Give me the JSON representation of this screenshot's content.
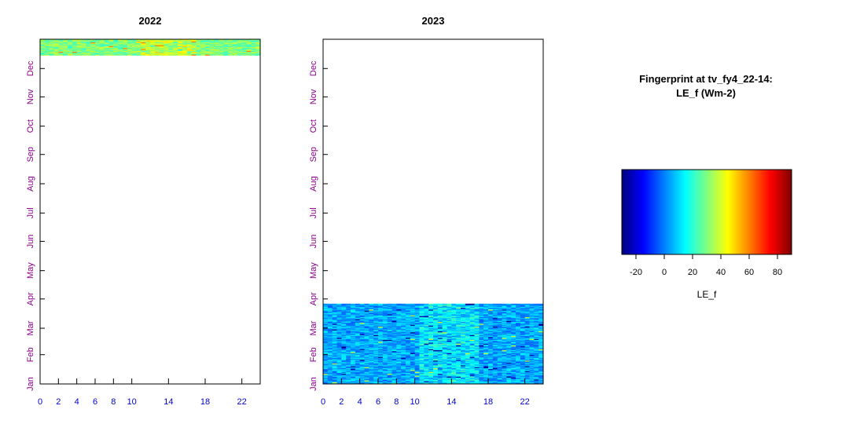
{
  "chart_data": [
    {
      "type": "heatmap",
      "title": "2022",
      "x_ticks": [
        0,
        2,
        4,
        6,
        8,
        10,
        14,
        18,
        22
      ],
      "x_range": [
        0,
        24
      ],
      "y_ticks": [
        "Jan",
        "Feb",
        "Mar",
        "Apr",
        "May",
        "Jun",
        "Jul",
        "Aug",
        "Sep",
        "Oct",
        "Nov",
        "Dec"
      ],
      "y_range_days": [
        1,
        366
      ],
      "data_extent_days": [
        349,
        365
      ],
      "typical_value": 30,
      "value_range": [
        20,
        60
      ]
    },
    {
      "type": "heatmap",
      "title": "2023",
      "x_ticks": [
        0,
        2,
        4,
        6,
        8,
        10,
        14,
        18,
        22
      ],
      "x_range": [
        0,
        24
      ],
      "y_ticks": [
        "Jan",
        "Feb",
        "Mar",
        "Apr",
        "May",
        "Jun",
        "Jul",
        "Aug",
        "Sep",
        "Oct",
        "Nov",
        "Dec"
      ],
      "y_range_days": [
        1,
        366
      ],
      "data_extent_days": [
        1,
        85
      ],
      "typical_value": 5,
      "value_range": [
        -30,
        40
      ]
    }
  ],
  "legend": {
    "title_line1": "Fingerprint at tv_fy4_22-14:",
    "title_line2": "LE_f (Wm-2)",
    "label": "LE_f",
    "ticks": [
      -20,
      0,
      20,
      40,
      60,
      80
    ],
    "range": [
      -30,
      90
    ],
    "colors": [
      "#00007f",
      "#0000ff",
      "#007fff",
      "#00ffff",
      "#7fff7f",
      "#ffff00",
      "#ff7f00",
      "#ff0000",
      "#7f0000"
    ]
  }
}
